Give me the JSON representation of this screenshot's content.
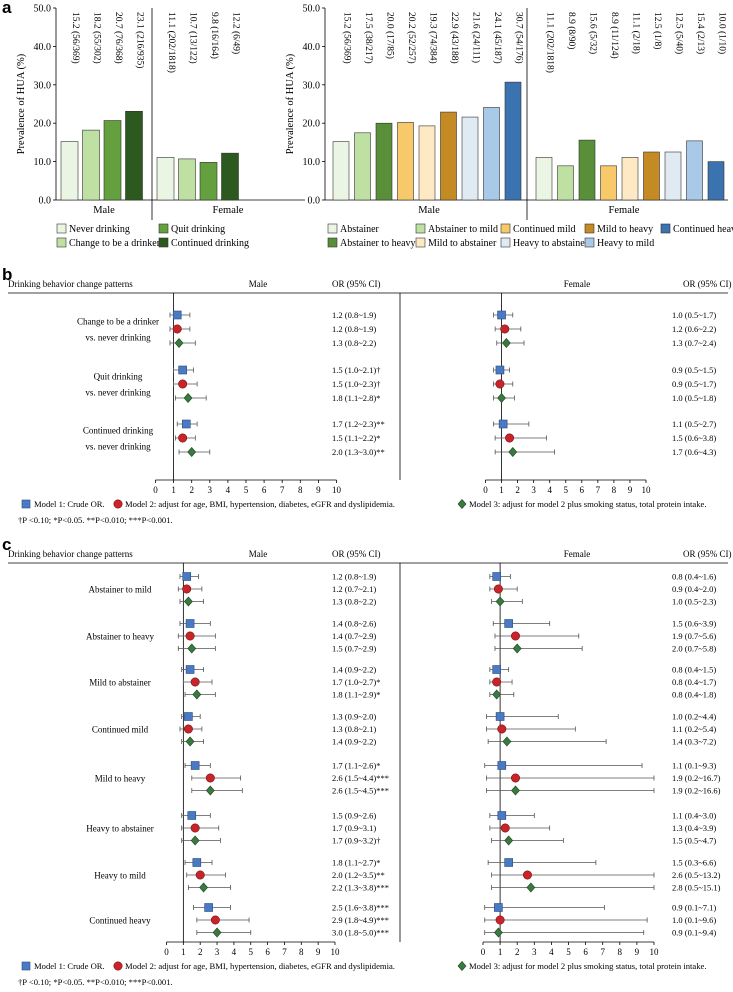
{
  "panel_labels": {
    "a": "a",
    "b": "b",
    "c": "c"
  },
  "colors": {
    "never": "#eaf5e4",
    "change": "#bfe0a3",
    "quit": "#64a13e",
    "continued": "#2c5a1e",
    "abstainer": "#eaf5e4",
    "abst_mild": "#bfe0a3",
    "abst_heavy": "#5a8f3a",
    "cont_mild": "#f7c96a",
    "mild_abst": "#fde9c4",
    "mild_heavy": "#c48a24",
    "heavy_abst": "#dfeaf3",
    "heavy_mild": "#a8c9e8",
    "cont_heavy": "#3b72b0",
    "m1": "#4a7ac4",
    "m2": "#c8252b",
    "m3": "#3b7a3e"
  },
  "chart_data": [
    {
      "type": "bar",
      "title": "",
      "ylabel": "Prevalence of HUA (%)",
      "ylim": [
        0,
        50
      ],
      "yticks": [
        "0.0",
        "10.0",
        "20.0",
        "30.0",
        "40.0",
        "50.0"
      ],
      "groups": [
        {
          "name": "Male",
          "values": [
            15.2,
            18.2,
            20.7,
            23.1
          ],
          "labels": [
            "15.2 (56/369)",
            "18.2 (55/302)",
            "20.7 (76/368)",
            "23.1 (216/935)"
          ]
        },
        {
          "name": "Female",
          "values": [
            11.1,
            10.7,
            9.8,
            12.2
          ],
          "labels": [
            "11.1 (202/1818)",
            "10.7 (13/122)",
            "9.8 (16/164)",
            "12.2 (6/49)"
          ]
        }
      ],
      "legend": [
        "Never drinking",
        "Quit drinking",
        "Change to be a drinker",
        "Continued drinking"
      ],
      "series_keys": [
        "never",
        "change",
        "quit",
        "continued"
      ],
      "legend_keys": [
        "never",
        "quit",
        "change",
        "continued"
      ]
    },
    {
      "type": "bar",
      "title": "",
      "ylabel": "Prevalence of HUA (%)",
      "ylim": [
        0,
        50
      ],
      "yticks": [
        "0.0",
        "10.0",
        "20.0",
        "30.0",
        "40.0",
        "50.0"
      ],
      "groups": [
        {
          "name": "Male",
          "values": [
            15.2,
            17.5,
            20.0,
            20.2,
            19.3,
            22.9,
            21.6,
            24.1,
            30.7
          ],
          "labels": [
            "15.2 (56/369)",
            "17.5 (38/217)",
            "20.0 (17/85)",
            "20.2 (52/257)",
            "19.3 (74/384)",
            "22.9 (43/188)",
            "21.6 (24/111)",
            "24.1 (45/187)",
            "30.7 (54/176)"
          ]
        },
        {
          "name": "Female",
          "values": [
            11.1,
            8.9,
            15.6,
            8.9,
            11.1,
            12.5,
            12.5,
            15.4,
            10.0
          ],
          "labels": [
            "11.1 (202/1818)",
            "8.9 (8/90)",
            "15.6 (5/32)",
            "8.9 (11/124)",
            "11.1 (2/18)",
            "12.5 (1/8)",
            "12.5 (5/40)",
            "15.4 (2/13)",
            "10.0 (1/10)"
          ]
        }
      ],
      "legend": [
        "Abstainer",
        "Abstainer to mild",
        "Continued mild",
        "Mild to heavy",
        "Continued heavy",
        "Abstainer to heavy",
        "Mild to abstainer",
        "Heavy to abstainer",
        "Heavy to mild"
      ],
      "series_keys": [
        "abstainer",
        "abst_mild",
        "abst_heavy",
        "cont_mild",
        "mild_abst",
        "mild_heavy",
        "heavy_abst",
        "heavy_mild",
        "cont_heavy"
      ],
      "legend_keys": [
        "abstainer",
        "abst_mild",
        "cont_mild",
        "mild_heavy",
        "cont_heavy",
        "abst_heavy",
        "mild_abst",
        "heavy_abst",
        "heavy_mild"
      ]
    },
    {
      "type": "forest",
      "header": {
        "first": "Drinking behavior change patterns",
        "male": "Male",
        "female": "Female",
        "or": "OR (95% CI)"
      },
      "xlim": [
        0,
        10
      ],
      "xticks": [
        "0",
        "1",
        "2",
        "3",
        "4",
        "5",
        "6",
        "7",
        "8",
        "9",
        "10"
      ],
      "reference": 1,
      "rows": [
        {
          "label": [
            "Change to be a drinker",
            "vs. never drinking"
          ],
          "male": [
            {
              "or": 1.2,
              "lo": 0.8,
              "hi": 1.9,
              "text": "1.2 (0.8~1.9)"
            },
            {
              "or": 1.2,
              "lo": 0.8,
              "hi": 1.9,
              "text": "1.2 (0.8~1.9)"
            },
            {
              "or": 1.3,
              "lo": 0.8,
              "hi": 2.2,
              "text": "1.3 (0.8~2.2)"
            }
          ],
          "female": [
            {
              "or": 1.0,
              "lo": 0.5,
              "hi": 1.7,
              "text": "1.0 (0.5~1.7)"
            },
            {
              "or": 1.2,
              "lo": 0.6,
              "hi": 2.2,
              "text": "1.2 (0.6~2.2)"
            },
            {
              "or": 1.3,
              "lo": 0.7,
              "hi": 2.4,
              "text": "1.3 (0.7~2.4)"
            }
          ]
        },
        {
          "label": [
            "Quit drinking",
            "vs. never drinking"
          ],
          "male": [
            {
              "or": 1.5,
              "lo": 1.0,
              "hi": 2.1,
              "text": "1.5 (1.0~2.1)†"
            },
            {
              "or": 1.5,
              "lo": 1.0,
              "hi": 2.3,
              "text": "1.5 (1.0~2.3)†"
            },
            {
              "or": 1.8,
              "lo": 1.1,
              "hi": 2.8,
              "text": "1.8 (1.1~2.8)*"
            }
          ],
          "female": [
            {
              "or": 0.9,
              "lo": 0.5,
              "hi": 1.5,
              "text": "0.9 (0.5~1.5)"
            },
            {
              "or": 0.9,
              "lo": 0.5,
              "hi": 1.7,
              "text": "0.9 (0.5~1.7)"
            },
            {
              "or": 1.0,
              "lo": 0.5,
              "hi": 1.8,
              "text": "1.0 (0.5~1.8)"
            }
          ]
        },
        {
          "label": [
            "Continued drinking",
            "vs. never drinking"
          ],
          "male": [
            {
              "or": 1.7,
              "lo": 1.2,
              "hi": 2.3,
              "text": "1.7 (1.2~2.3)**"
            },
            {
              "or": 1.5,
              "lo": 1.1,
              "hi": 2.2,
              "text": "1.5 (1.1~2.2)*"
            },
            {
              "or": 2.0,
              "lo": 1.3,
              "hi": 3.0,
              "text": "2.0 (1.3~3.0)**"
            }
          ],
          "female": [
            {
              "or": 1.1,
              "lo": 0.5,
              "hi": 2.7,
              "text": "1.1 (0.5~2.7)"
            },
            {
              "or": 1.5,
              "lo": 0.6,
              "hi": 3.8,
              "text": "1.5 (0.6~3.8)"
            },
            {
              "or": 1.7,
              "lo": 0.6,
              "hi": 4.3,
              "text": "1.7 (0.6~4.3)"
            }
          ]
        }
      ],
      "legend": [
        "Model 1: Crude OR.",
        "Model 2: adjust for age, BMI, hypertension, diabetes, eGFR and dyslipidemia.",
        "Model 3: adjust for model 2 plus smoking status, total protein intake."
      ],
      "footnote": "†P <0.10; *P<0.05. **P<0.010; ***P<0.001."
    },
    {
      "type": "forest",
      "header": {
        "first": "Drinking behavior change patterns",
        "male": "Male",
        "female": "Female",
        "or": "OR (95% CI)"
      },
      "xlim": [
        0,
        10
      ],
      "xticks": [
        "0",
        "1",
        "2",
        "3",
        "4",
        "5",
        "6",
        "7",
        "8",
        "9",
        "10"
      ],
      "reference": 1,
      "rows": [
        {
          "label": [
            "Abstainer to mild"
          ],
          "male": [
            {
              "or": 1.2,
              "lo": 0.8,
              "hi": 1.9,
              "text": "1.2 (0.8~1.9)"
            },
            {
              "or": 1.2,
              "lo": 0.7,
              "hi": 2.1,
              "text": "1.2 (0.7~2.1)"
            },
            {
              "or": 1.3,
              "lo": 0.8,
              "hi": 2.2,
              "text": "1.3 (0.8~2.2)"
            }
          ],
          "female": [
            {
              "or": 0.8,
              "lo": 0.4,
              "hi": 1.6,
              "text": "0.8 (0.4~1.6)"
            },
            {
              "or": 0.9,
              "lo": 0.4,
              "hi": 2.0,
              "text": "0.9 (0.4~2.0)"
            },
            {
              "or": 1.0,
              "lo": 0.5,
              "hi": 2.3,
              "text": "1.0 (0.5~2.3)"
            }
          ]
        },
        {
          "label": [
            "Abstainer to heavy"
          ],
          "male": [
            {
              "or": 1.4,
              "lo": 0.8,
              "hi": 2.6,
              "text": "1.4 (0.8~2.6)"
            },
            {
              "or": 1.4,
              "lo": 0.7,
              "hi": 2.9,
              "text": "1.4 (0.7~2.9)"
            },
            {
              "or": 1.5,
              "lo": 0.7,
              "hi": 2.9,
              "text": "1.5 (0.7~2.9)"
            }
          ],
          "female": [
            {
              "or": 1.5,
              "lo": 0.6,
              "hi": 3.9,
              "text": "1.5 (0.6~3.9)"
            },
            {
              "or": 1.9,
              "lo": 0.7,
              "hi": 5.6,
              "text": "1.9 (0.7~5.6)"
            },
            {
              "or": 2.0,
              "lo": 0.7,
              "hi": 5.8,
              "text": "2.0 (0.7~5.8)"
            }
          ]
        },
        {
          "label": [
            "Mild to abstainer"
          ],
          "male": [
            {
              "or": 1.4,
              "lo": 0.9,
              "hi": 2.2,
              "text": "1.4 (0.9~2.2)"
            },
            {
              "or": 1.7,
              "lo": 1.0,
              "hi": 2.7,
              "text": "1.7 (1.0~2.7)*"
            },
            {
              "or": 1.8,
              "lo": 1.1,
              "hi": 2.9,
              "text": "1.8 (1.1~2.9)*"
            }
          ],
          "female": [
            {
              "or": 0.8,
              "lo": 0.4,
              "hi": 1.5,
              "text": "0.8 (0.4~1.5)"
            },
            {
              "or": 0.8,
              "lo": 0.4,
              "hi": 1.7,
              "text": "0.8 (0.4~1.7)"
            },
            {
              "or": 0.8,
              "lo": 0.4,
              "hi": 1.8,
              "text": "0.8 (0.4~1.8)"
            }
          ]
        },
        {
          "label": [
            "Continued mild"
          ],
          "male": [
            {
              "or": 1.3,
              "lo": 0.9,
              "hi": 2.0,
              "text": "1.3 (0.9~2.0)"
            },
            {
              "or": 1.3,
              "lo": 0.8,
              "hi": 2.1,
              "text": "1.3 (0.8~2.1)"
            },
            {
              "or": 1.4,
              "lo": 0.9,
              "hi": 2.2,
              "text": "1.4 (0.9~2.2)"
            }
          ],
          "female": [
            {
              "or": 1.0,
              "lo": 0.2,
              "hi": 4.4,
              "text": "1.0 (0.2~4.4)"
            },
            {
              "or": 1.1,
              "lo": 0.2,
              "hi": 5.4,
              "text": "1.1 (0.2~5.4)"
            },
            {
              "or": 1.4,
              "lo": 0.3,
              "hi": 7.2,
              "text": "1.4 (0.3~7.2)"
            }
          ]
        },
        {
          "label": [
            "Mild to heavy"
          ],
          "male": [
            {
              "or": 1.7,
              "lo": 1.1,
              "hi": 2.6,
              "text": "1.7 (1.1~2.6)*"
            },
            {
              "or": 2.6,
              "lo": 1.5,
              "hi": 4.4,
              "text": "2.6 (1.5~4.4)***"
            },
            {
              "or": 2.6,
              "lo": 1.5,
              "hi": 4.5,
              "text": "2.6 (1.5~4.5)***"
            }
          ],
          "female": [
            {
              "or": 1.1,
              "lo": 0.1,
              "hi": 9.3,
              "text": "1.1 (0.1~9.3)"
            },
            {
              "or": 1.9,
              "lo": 0.2,
              "hi": 16.7,
              "text": "1.9 (0.2~16.7)"
            },
            {
              "or": 1.9,
              "lo": 0.2,
              "hi": 16.6,
              "text": "1.9 (0.2~16.6)"
            }
          ]
        },
        {
          "label": [
            "Heavy to abstainer"
          ],
          "male": [
            {
              "or": 1.5,
              "lo": 0.9,
              "hi": 2.6,
              "text": "1.5 (0.9~2.6)"
            },
            {
              "or": 1.7,
              "lo": 0.9,
              "hi": 3.1,
              "text": "1.7 (0.9~3.1)"
            },
            {
              "or": 1.7,
              "lo": 0.9,
              "hi": 3.2,
              "text": "1.7 (0.9~3.2)†"
            }
          ],
          "female": [
            {
              "or": 1.1,
              "lo": 0.4,
              "hi": 3.0,
              "text": "1.1 (0.4~3.0)"
            },
            {
              "or": 1.3,
              "lo": 0.4,
              "hi": 3.9,
              "text": "1.3 (0.4~3.9)"
            },
            {
              "or": 1.5,
              "lo": 0.5,
              "hi": 4.7,
              "text": "1.5 (0.5~4.7)"
            }
          ]
        },
        {
          "label": [
            "Heavy to mild"
          ],
          "male": [
            {
              "or": 1.8,
              "lo": 1.1,
              "hi": 2.7,
              "text": "1.8 (1.1~2.7)*"
            },
            {
              "or": 2.0,
              "lo": 1.2,
              "hi": 3.5,
              "text": "2.0 (1.2~3.5)**"
            },
            {
              "or": 2.2,
              "lo": 1.3,
              "hi": 3.8,
              "text": "2.2 (1.3~3.8)***"
            }
          ],
          "female": [
            {
              "or": 1.5,
              "lo": 0.3,
              "hi": 6.6,
              "text": "1.5 (0.3~6.6)"
            },
            {
              "or": 2.6,
              "lo": 0.5,
              "hi": 13.2,
              "text": "2.6 (0.5~13.2)"
            },
            {
              "or": 2.8,
              "lo": 0.5,
              "hi": 15.1,
              "text": "2.8 (0.5~15.1)"
            }
          ]
        },
        {
          "label": [
            "Continued heavy"
          ],
          "male": [
            {
              "or": 2.5,
              "lo": 1.6,
              "hi": 3.8,
              "text": "2.5 (1.6~3.8)***"
            },
            {
              "or": 2.9,
              "lo": 1.8,
              "hi": 4.9,
              "text": "2.9 (1.8~4.9)***"
            },
            {
              "or": 3.0,
              "lo": 1.8,
              "hi": 5.0,
              "text": "3.0 (1.8~5.0)***"
            }
          ],
          "female": [
            {
              "or": 0.9,
              "lo": 0.1,
              "hi": 7.1,
              "text": "0.9 (0.1~7.1)"
            },
            {
              "or": 1.0,
              "lo": 0.1,
              "hi": 9.6,
              "text": "1.0 (0.1~9.6)"
            },
            {
              "or": 0.9,
              "lo": 0.1,
              "hi": 9.4,
              "text": "0.9 (0.1~9.4)"
            }
          ]
        }
      ],
      "legend": [
        "Model 1: Crude OR.",
        "Model 2: adjust for age, BMI, hypertension, diabetes, eGFR and dyslipidemia.",
        "Model 3: adjust for model 2 plus smoking status, total protein intake."
      ],
      "footnote": "†P <0.10; *P<0.05. **P<0.010; ***P<0.001."
    }
  ]
}
